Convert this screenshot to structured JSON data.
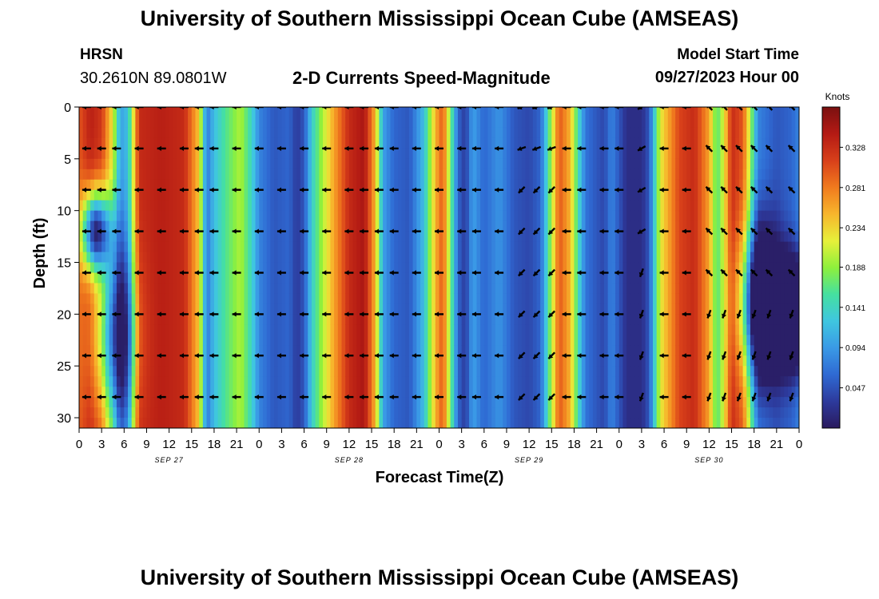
{
  "header": {
    "title": "University of Southern Mississippi Ocean Cube (AMSEAS)",
    "station": "HRSN",
    "coords": "30.2610N  89.0801W",
    "subtitle": "2-D Currents Speed-Magnitude",
    "model_start_label": "Model Start Time",
    "model_start_value": "09/27/2023 Hour 00"
  },
  "footer": {
    "title": "University of Southern Mississippi Ocean Cube (AMSEAS)"
  },
  "colors": {
    "palette": [
      "#2a1a5e",
      "#2d3a9c",
      "#2f6ad3",
      "#3a9ae6",
      "#3fc6e0",
      "#45e0a0",
      "#8ef03c",
      "#e7f03a",
      "#f7b52c",
      "#f07a1e",
      "#d8401a",
      "#b41a14",
      "#7a1010"
    ],
    "background": "#ffffff",
    "arrow": "#000000"
  },
  "chart_data": {
    "type": "heatmap",
    "title": "2-D Currents Speed-Magnitude",
    "xlabel": "Forecast Time(Z)",
    "ylabel": "Depth (ft)",
    "x_tick_labels": [
      "0",
      "3",
      "6",
      "9",
      "12",
      "15",
      "18",
      "21",
      "0",
      "3",
      "6",
      "9",
      "12",
      "15",
      "18",
      "21",
      "0",
      "3",
      "6",
      "9",
      "12",
      "15",
      "18",
      "21",
      "0",
      "3",
      "6",
      "9",
      "12",
      "15",
      "18",
      "21",
      "0"
    ],
    "x_range_hours": [
      0,
      96
    ],
    "date_labels": [
      {
        "label": "SEP 27",
        "hour": 12
      },
      {
        "label": "SEP 28",
        "hour": 36
      },
      {
        "label": "SEP 29",
        "hour": 60
      },
      {
        "label": "SEP 30",
        "hour": 84
      }
    ],
    "y_ticks": [
      0,
      5,
      10,
      15,
      20,
      25,
      30
    ],
    "y_range_ft": [
      0,
      31
    ],
    "colorbar": {
      "label": "Knots",
      "range": [
        0.0,
        0.375
      ],
      "ticks": [
        0.328,
        0.281,
        0.234,
        0.188,
        0.141,
        0.094,
        0.047
      ],
      "tick_labels": [
        "0.328",
        "0.281",
        "0.234",
        "0.188",
        "0.141",
        "0.094",
        "0.047"
      ]
    },
    "speed_profile_knots": [
      [
        0,
        0.3
      ],
      [
        1.5,
        0.34
      ],
      [
        3,
        0.32
      ],
      [
        4.5,
        0.22
      ],
      [
        5.5,
        0.1
      ],
      [
        6.5,
        0.12
      ],
      [
        8,
        0.33
      ],
      [
        11,
        0.34
      ],
      [
        14,
        0.33
      ],
      [
        16,
        0.24
      ],
      [
        17,
        0.07
      ],
      [
        18,
        0.12
      ],
      [
        19.5,
        0.16
      ],
      [
        21.5,
        0.2
      ],
      [
        23,
        0.14
      ],
      [
        24,
        0.08
      ],
      [
        26,
        0.05
      ],
      [
        28,
        0.06
      ],
      [
        29,
        0.03
      ],
      [
        30,
        0.05
      ],
      [
        31,
        0.13
      ],
      [
        32.5,
        0.2
      ],
      [
        34,
        0.26
      ],
      [
        36,
        0.33
      ],
      [
        38,
        0.35
      ],
      [
        39.5,
        0.25
      ],
      [
        40.5,
        0.1
      ],
      [
        42,
        0.06
      ],
      [
        44,
        0.05
      ],
      [
        46,
        0.12
      ],
      [
        47.5,
        0.25
      ],
      [
        48.5,
        0.3
      ],
      [
        49.5,
        0.18
      ],
      [
        50.5,
        0.06
      ],
      [
        51.5,
        0.03
      ],
      [
        52.5,
        0.1
      ],
      [
        54,
        0.06
      ],
      [
        56,
        0.09
      ],
      [
        58,
        0.05
      ],
      [
        60,
        0.04
      ],
      [
        61.5,
        0.06
      ],
      [
        62,
        0.1
      ],
      [
        64,
        0.3
      ],
      [
        65.5,
        0.25
      ],
      [
        66.5,
        0.15
      ],
      [
        67.5,
        0.07
      ],
      [
        69,
        0.05
      ],
      [
        70,
        0.04
      ],
      [
        71,
        0.08
      ],
      [
        72,
        0.05
      ],
      [
        73,
        0.02
      ],
      [
        75,
        0.02
      ],
      [
        76,
        0.05
      ],
      [
        77.5,
        0.22
      ],
      [
        80,
        0.31
      ],
      [
        82,
        0.33
      ],
      [
        84,
        0.26
      ],
      [
        85,
        0.16
      ],
      [
        86,
        0.22
      ],
      [
        87,
        0.33
      ],
      [
        88.5,
        0.3
      ],
      [
        89.5,
        0.2
      ],
      [
        90.5,
        0.08
      ],
      [
        93,
        0.05
      ],
      [
        95,
        0.06
      ],
      [
        96,
        0.08
      ]
    ],
    "vector_times_hours": [
      1,
      3,
      5,
      8,
      11,
      14,
      16,
      18,
      21,
      24,
      27,
      30,
      33,
      36,
      38,
      40,
      42,
      45,
      48,
      51,
      53,
      56,
      59,
      61,
      63,
      65,
      67,
      70,
      72,
      75,
      78,
      81,
      84,
      86,
      88,
      90,
      92,
      95
    ],
    "vector_depths_ft": [
      0,
      4,
      8,
      12,
      16,
      20,
      24,
      28
    ],
    "vector_direction": "mostly westward (leftward) arrows, with northward/southward components on Sep 29–30"
  }
}
